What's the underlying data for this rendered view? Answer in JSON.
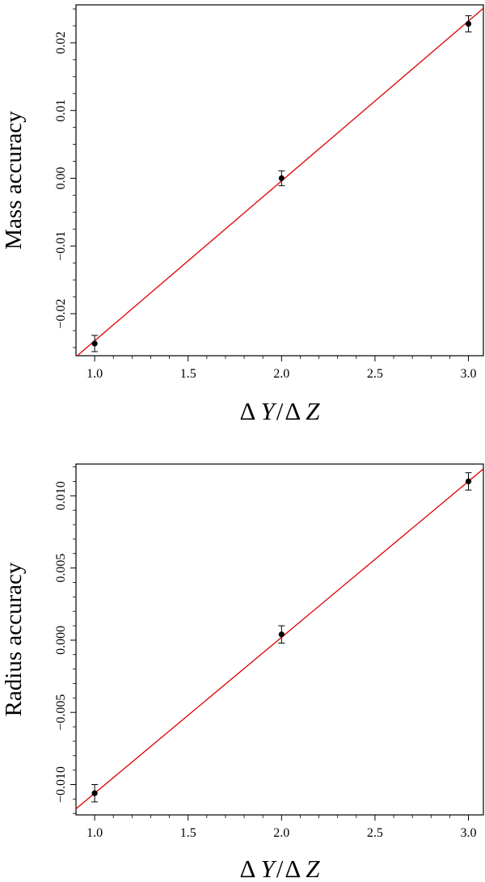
{
  "chart_data": [
    {
      "type": "scatter",
      "xlabel": {
        "delta1": "Δ",
        "var1": "Y",
        "slash": "/",
        "delta2": "Δ",
        "var2": "Z"
      },
      "ylabel": "Mass accuracy",
      "xlim": [
        0.9,
        3.08
      ],
      "ylim": [
        -0.0262,
        0.0256
      ],
      "xticks": [
        1.0,
        1.5,
        2.0,
        2.5,
        3.0
      ],
      "xtick_labels": [
        "1.0",
        "1.5",
        "2.0",
        "2.5",
        "3.0"
      ],
      "yticks": [
        -0.02,
        -0.01,
        0.0,
        0.01,
        0.02
      ],
      "ytick_labels": [
        "−0.02",
        "−0.01",
        "0.00",
        "0.01",
        "0.02"
      ],
      "minor_xticks": [
        1.1,
        1.2,
        1.3,
        1.4,
        1.6,
        1.7,
        1.8,
        1.9,
        2.1,
        2.2,
        2.3,
        2.4,
        2.6,
        2.7,
        2.8,
        2.9
      ],
      "minor_yticks": [
        -0.025,
        -0.0225,
        -0.0175,
        -0.015,
        -0.0125,
        -0.0075,
        -0.005,
        -0.0025,
        0.0025,
        0.005,
        0.0075,
        0.0125,
        0.015,
        0.0175,
        0.0225,
        0.025
      ],
      "points": [
        {
          "x": 1.0,
          "y": -0.0244,
          "err": 0.0012
        },
        {
          "x": 2.0,
          "y": 0.0,
          "err": 0.0011
        },
        {
          "x": 3.0,
          "y": 0.0228,
          "err": 0.0012
        }
      ],
      "fit_line": {
        "slope": 0.0236,
        "intercept": -0.0476,
        "color": "#e00000"
      },
      "grid": false
    },
    {
      "type": "scatter",
      "xlabel": {
        "delta1": "Δ",
        "var1": "Y",
        "slash": "/",
        "delta2": "Δ",
        "var2": "Z"
      },
      "ylabel": "Radius accuracy",
      "xlim": [
        0.9,
        3.08
      ],
      "ylim": [
        -0.0121,
        0.0122
      ],
      "xticks": [
        1.0,
        1.5,
        2.0,
        2.5,
        3.0
      ],
      "xtick_labels": [
        "1.0",
        "1.5",
        "2.0",
        "2.5",
        "3.0"
      ],
      "yticks": [
        -0.01,
        -0.005,
        0.0,
        0.005,
        0.01
      ],
      "ytick_labels": [
        "−0.010",
        "−0.005",
        "0.000",
        "0.005",
        "0.010"
      ],
      "minor_xticks": [
        1.1,
        1.2,
        1.3,
        1.4,
        1.6,
        1.7,
        1.8,
        1.9,
        2.1,
        2.2,
        2.3,
        2.4,
        2.6,
        2.7,
        2.8,
        2.9
      ],
      "minor_yticks": [
        -0.012,
        -0.011,
        -0.009,
        -0.008,
        -0.007,
        -0.006,
        -0.004,
        -0.003,
        -0.002,
        -0.001,
        0.001,
        0.002,
        0.003,
        0.004,
        0.006,
        0.007,
        0.008,
        0.009,
        0.011,
        0.012
      ],
      "points": [
        {
          "x": 1.0,
          "y": -0.0106,
          "err": 0.0006
        },
        {
          "x": 2.0,
          "y": 0.0004,
          "err": 0.0006
        },
        {
          "x": 3.0,
          "y": 0.011,
          "err": 0.0006
        }
      ],
      "fit_line": {
        "slope": 0.0108,
        "intercept": -0.0214,
        "color": "#e00000"
      },
      "grid": false
    }
  ]
}
